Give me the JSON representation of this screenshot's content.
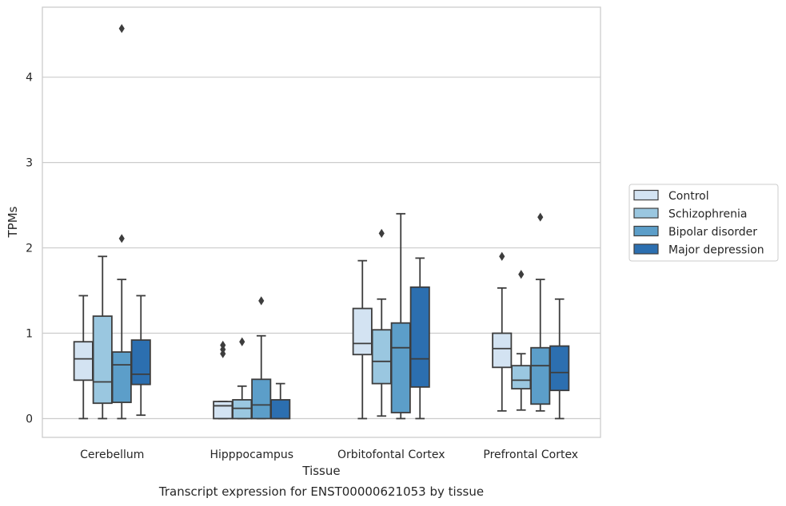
{
  "chart_data": {
    "type": "box",
    "title": "Transcript expression for ENST00000621053 by tissue",
    "xlabel": "Tissue",
    "ylabel": "TPMs",
    "ylim": [
      -0.22,
      4.82
    ],
    "yticks": [
      0,
      1,
      2,
      3,
      4
    ],
    "grid": true,
    "legend_position": "right",
    "categories": [
      "Cerebellum",
      "Hipppocampus",
      "Orbitofontal Cortex",
      "Prefrontal Cortex"
    ],
    "series": [
      {
        "name": "Control",
        "color": "#d3e3f2",
        "boxes": [
          {
            "whislo": 0.0,
            "q1": 0.45,
            "med": 0.7,
            "q3": 0.9,
            "whishi": 1.44,
            "fliers": []
          },
          {
            "whislo": 0.0,
            "q1": 0.0,
            "med": 0.15,
            "q3": 0.2,
            "whishi": 0.2,
            "fliers": [
              0.76,
              0.81,
              0.86
            ]
          },
          {
            "whislo": 0.0,
            "q1": 0.75,
            "med": 0.88,
            "q3": 1.29,
            "whishi": 1.85,
            "fliers": []
          },
          {
            "whislo": 0.09,
            "q1": 0.6,
            "med": 0.82,
            "q3": 1.0,
            "whishi": 1.53,
            "fliers": [
              1.9
            ]
          }
        ]
      },
      {
        "name": "Schizophrenia",
        "color": "#9ac7e0",
        "boxes": [
          {
            "whislo": 0.0,
            "q1": 0.18,
            "med": 0.43,
            "q3": 1.2,
            "whishi": 1.9,
            "fliers": []
          },
          {
            "whislo": 0.0,
            "q1": 0.0,
            "med": 0.12,
            "q3": 0.22,
            "whishi": 0.38,
            "fliers": [
              0.9
            ]
          },
          {
            "whislo": 0.03,
            "q1": 0.41,
            "med": 0.67,
            "q3": 1.04,
            "whishi": 1.4,
            "fliers": [
              2.17
            ]
          },
          {
            "whislo": 0.1,
            "q1": 0.35,
            "med": 0.45,
            "q3": 0.62,
            "whishi": 0.76,
            "fliers": [
              1.69
            ]
          }
        ]
      },
      {
        "name": "Bipolar disorder",
        "color": "#5c9ec9",
        "boxes": [
          {
            "whislo": 0.0,
            "q1": 0.19,
            "med": 0.63,
            "q3": 0.78,
            "whishi": 1.63,
            "fliers": [
              2.11,
              4.57
            ]
          },
          {
            "whislo": 0.0,
            "q1": 0.0,
            "med": 0.16,
            "q3": 0.46,
            "whishi": 0.97,
            "fliers": [
              1.38
            ]
          },
          {
            "whislo": 0.0,
            "q1": 0.07,
            "med": 0.83,
            "q3": 1.12,
            "whishi": 2.4,
            "fliers": []
          },
          {
            "whislo": 0.09,
            "q1": 0.17,
            "med": 0.62,
            "q3": 0.83,
            "whishi": 1.63,
            "fliers": [
              2.36
            ]
          }
        ]
      },
      {
        "name": "Major depression",
        "color": "#2c6fb0",
        "boxes": [
          {
            "whislo": 0.04,
            "q1": 0.4,
            "med": 0.52,
            "q3": 0.92,
            "whishi": 1.44,
            "fliers": []
          },
          {
            "whislo": 0.0,
            "q1": 0.0,
            "med": 0.0,
            "q3": 0.22,
            "whishi": 0.41,
            "fliers": []
          },
          {
            "whislo": 0.0,
            "q1": 0.37,
            "med": 0.7,
            "q3": 1.54,
            "whishi": 1.88,
            "fliers": []
          },
          {
            "whislo": 0.0,
            "q1": 0.33,
            "med": 0.54,
            "q3": 0.85,
            "whishi": 1.4,
            "fliers": []
          }
        ]
      }
    ]
  },
  "colors": {
    "grid": "#cccccc",
    "frame": "#cccccc",
    "box_edge": "#3d3d3d",
    "text": "#262626"
  }
}
